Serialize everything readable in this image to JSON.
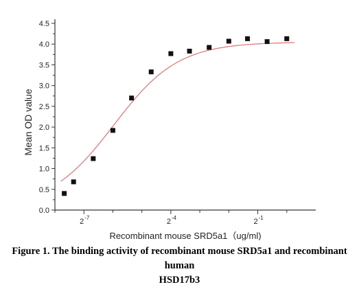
{
  "chart_data": {
    "type": "scatter",
    "ylabel": "Mean OD value",
    "xlabel": "Recombinant mouse SRD5a1（ug/ml)",
    "x_scale": "log2",
    "xlim": [
      0.00390625,
      2
    ],
    "ylim": [
      0,
      4.5
    ],
    "y_ticks": [
      "0.0",
      "0.5",
      "1.0",
      "1.5",
      "2.0",
      "2.5",
      "3.0",
      "3.5",
      "4.0",
      "4.5"
    ],
    "x_tick_labels": [
      {
        "base": "2",
        "exp": "-7",
        "value": 0.0078125
      },
      {
        "base": "2",
        "exp": "-4",
        "value": 0.0625
      },
      {
        "base": "2",
        "exp": "-1",
        "value": 0.5
      }
    ],
    "x_minor_ticks": [
      0.00390625,
      0.015625,
      0.03125,
      0.125,
      0.25,
      1
    ],
    "series": [
      {
        "marker": "square",
        "color": "#111111",
        "x": [
          0.004883,
          0.006104,
          0.009766,
          0.015625,
          0.024414,
          0.039063,
          0.0625,
          0.097656,
          0.15625,
          0.25,
          0.390625,
          0.625,
          1
        ],
        "y": [
          0.4,
          0.68,
          1.24,
          1.92,
          2.7,
          3.33,
          3.77,
          3.83,
          3.92,
          4.07,
          4.13,
          4.06,
          4.13
        ]
      }
    ],
    "fit_curve": {
      "model": "4PL",
      "color": "#e07a7a",
      "bottom": 0.05,
      "top": 4.05,
      "ec50": 0.016,
      "hill": 1.3,
      "x_range": [
        0.0045,
        1.2
      ]
    }
  },
  "caption": {
    "line1": "Figure 1. The binding activity of recombinant mouse SRD5a1 and recombinant human",
    "line2": "HSD17b3"
  }
}
